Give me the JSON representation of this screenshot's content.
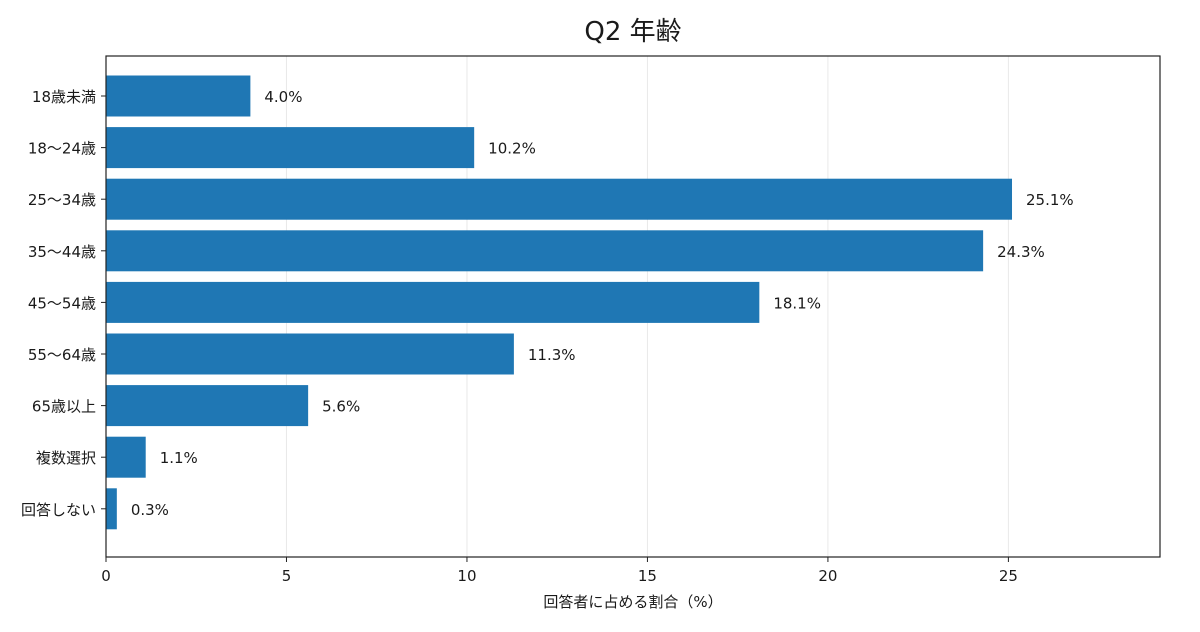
{
  "chart_data": {
    "type": "bar",
    "orientation": "horizontal",
    "title": "Q2 年齢",
    "xlabel": "回答者に占める割合（%）",
    "ylabel": "",
    "categories": [
      "18歳未満",
      "18～24歳",
      "25～34歳",
      "35～44歳",
      "45～54歳",
      "55～64歳",
      "65歳以上",
      "複数選択",
      "回答しない"
    ],
    "values": [
      4.0,
      10.2,
      25.1,
      24.3,
      18.1,
      11.3,
      5.6,
      1.1,
      0.3
    ],
    "value_labels": [
      "4.0%",
      "10.2%",
      "25.1%",
      "24.3%",
      "18.1%",
      "11.3%",
      "5.6%",
      "1.1%",
      "0.3%"
    ],
    "xlim": [
      0,
      29.2
    ],
    "xticks": [
      0,
      5,
      10,
      15,
      20,
      25
    ],
    "grid": "vertical",
    "bar_color": "#1f77b4"
  }
}
